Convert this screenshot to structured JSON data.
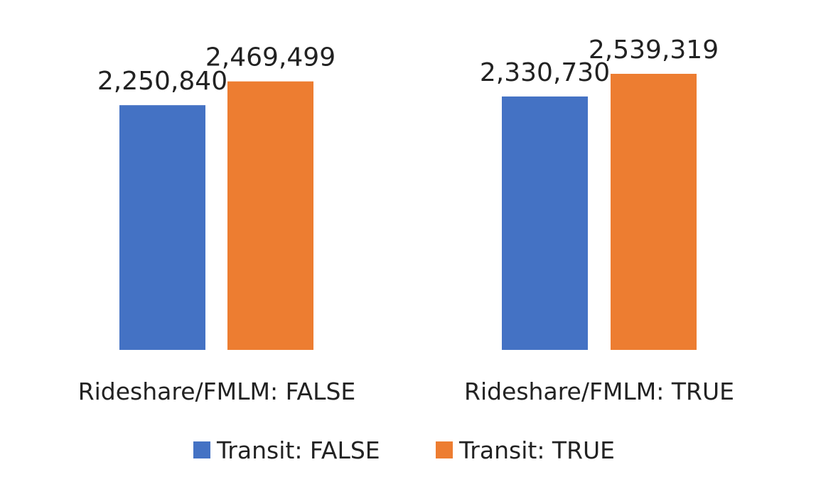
{
  "chart_data": {
    "type": "bar",
    "title": "",
    "xlabel": "",
    "ylabel": "",
    "categories": [
      "Rideshare/FMLM: FALSE",
      "Rideshare/FMLM: TRUE"
    ],
    "series": [
      {
        "name": "Transit: FALSE",
        "values": [
          2250840,
          2330730
        ],
        "color": "#4472C4"
      },
      {
        "name": "Transit: TRUE",
        "values": [
          2469499,
          2539319
        ],
        "color": "#ED7D31"
      }
    ],
    "data_labels": [
      [
        "2,250,840",
        "2,330,730"
      ],
      [
        "2,469,499",
        "2,539,319"
      ]
    ],
    "ylim": [
      0,
      2539319
    ],
    "grid": false,
    "legend_position": "bottom"
  }
}
